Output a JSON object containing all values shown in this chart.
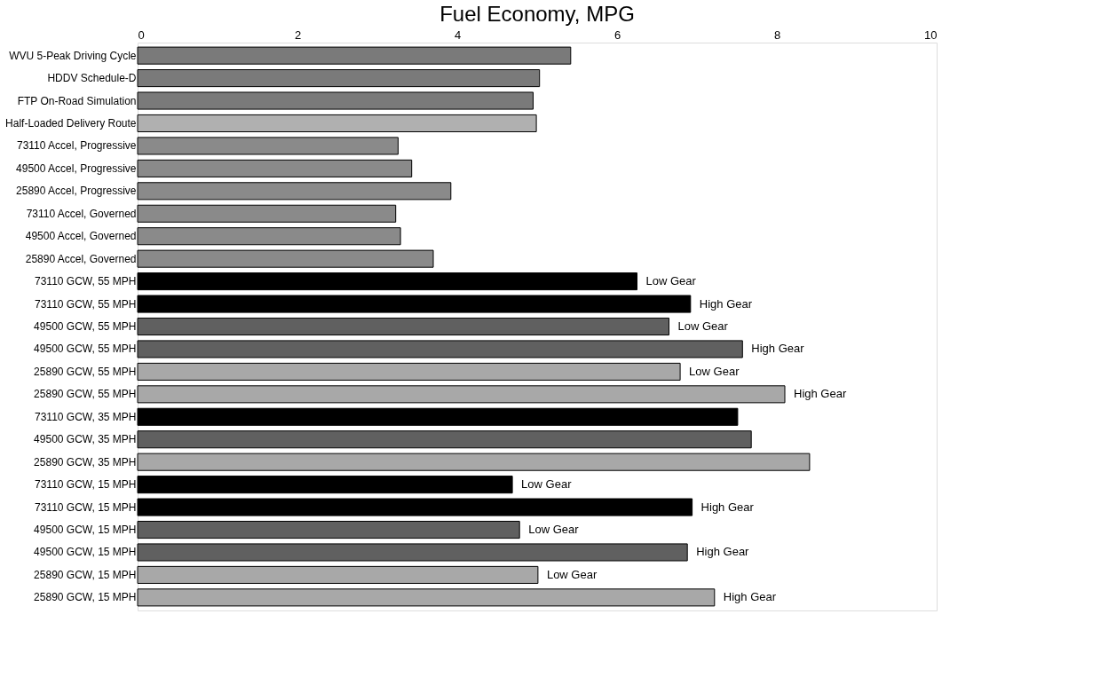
{
  "chart_data": {
    "type": "bar",
    "orientation": "horizontal",
    "title": "Fuel Economy, MPG",
    "categories": [
      "WVU 5-Peak Driving Cycle",
      "HDDV Schedule-D",
      "FTP On-Road Simulation",
      "Half-Loaded Delivery Route",
      "73110 Accel, Progressive",
      "49500 Accel, Progressive",
      "25890 Accel, Progressive",
      "73110 Accel, Governed",
      "49500 Accel, Governed",
      "25890 Accel, Governed",
      "73110 GCW, 55 MPH",
      "73110 GCW, 55 MPH",
      "49500 GCW, 55 MPH",
      "49500 GCW, 55 MPH",
      "25890 GCW, 55 MPH",
      "25890 GCW, 55 MPH",
      "73110 GCW, 35 MPH",
      "49500 GCW, 35 MPH",
      "25890 GCW, 35 MPH",
      "73110 GCW, 15 MPH",
      "73110 GCW, 15 MPH",
      "49500 GCW, 15 MPH",
      "49500 GCW, 15 MPH",
      "25890 GCW, 15 MPH",
      "25890 GCW, 15 MPH"
    ],
    "values": [
      5.42,
      5.03,
      4.95,
      4.99,
      3.26,
      3.43,
      3.92,
      3.23,
      3.29,
      3.7,
      6.25,
      6.92,
      6.65,
      7.57,
      6.79,
      8.1,
      7.51,
      7.68,
      8.41,
      4.69,
      6.94,
      4.78,
      6.88,
      5.01,
      7.22
    ],
    "colors": [
      "#7a7a7a",
      "#7a7a7a",
      "#7a7a7a",
      "#b0b0b0",
      "#8a8a8a",
      "#8a8a8a",
      "#8a8a8a",
      "#8a8a8a",
      "#8a8a8a",
      "#8a8a8a",
      "#000000",
      "#000000",
      "#606060",
      "#606060",
      "#a8a8a8",
      "#a8a8a8",
      "#000000",
      "#606060",
      "#a8a8a8",
      "#000000",
      "#000000",
      "#606060",
      "#606060",
      "#a8a8a8",
      "#a8a8a8"
    ],
    "value_labels": [
      null,
      null,
      null,
      null,
      null,
      null,
      null,
      null,
      null,
      null,
      "Low Gear",
      "High Gear",
      "Low Gear",
      "High Gear",
      "Low Gear",
      "High Gear",
      null,
      null,
      null,
      "Low Gear",
      "High Gear",
      "Low Gear",
      "High Gear",
      "Low Gear",
      "High Gear"
    ],
    "xlim": [
      0,
      10
    ],
    "xticks": [
      0,
      2,
      4,
      6,
      8,
      10
    ],
    "grid": false
  }
}
